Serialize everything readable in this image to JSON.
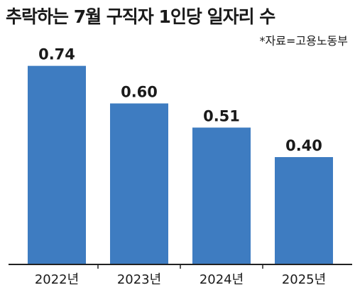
{
  "colors": {
    "bar": "#3e7cc1",
    "axis": "#222222",
    "text": "#1a1a1a"
  },
  "chart_data": {
    "type": "bar",
    "title": "추락하는 7월 구직자 1인당 일자리 수",
    "source": "*자료=고용노동부",
    "categories": [
      "2022년",
      "2023년",
      "2024년",
      "2025년"
    ],
    "values": [
      0.74,
      0.6,
      0.51,
      0.4
    ],
    "value_labels": [
      "0.74",
      "0.60",
      "0.51",
      "0.40"
    ],
    "ylim": [
      0,
      0.8
    ],
    "grid": false,
    "legend": "none"
  }
}
